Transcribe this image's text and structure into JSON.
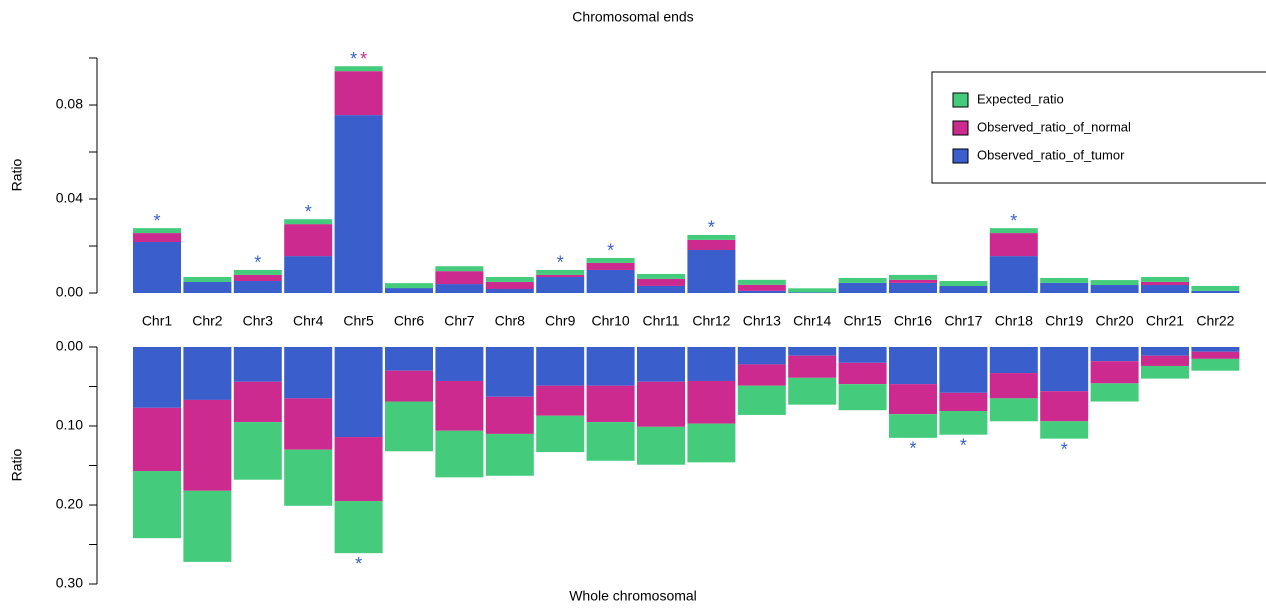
{
  "chart_data": [
    {
      "type": "stacked-bar",
      "title": "Chromosomal ends",
      "ylabel": "Ratio",
      "categories": [
        "Chr1",
        "Chr2",
        "Chr3",
        "Chr4",
        "Chr5",
        "Chr6",
        "Chr7",
        "Chr8",
        "Chr9",
        "Chr10",
        "Chr11",
        "Chr12",
        "Chr13",
        "Chr14",
        "Chr15",
        "Chr16",
        "Chr17",
        "Chr18",
        "Chr19",
        "Chr20",
        "Chr21",
        "Chr22"
      ],
      "series": [
        {
          "name": "Observed_ratio_of_tumor",
          "color": "#3a5fcd",
          "values": [
            0.0217,
            0.0047,
            0.0051,
            0.0157,
            0.0757,
            0.0021,
            0.0038,
            0.0017,
            0.0068,
            0.0098,
            0.003,
            0.0183,
            0.0009,
            0.0003,
            0.0043,
            0.0043,
            0.003,
            0.0157,
            0.0043,
            0.0034,
            0.0034,
            0.0009
          ]
        },
        {
          "name": "Observed_ratio_of_normal",
          "color": "#cc2a8e",
          "values": [
            0.0038,
            0,
            0.0026,
            0.0136,
            0.0187,
            0,
            0.0055,
            0.003,
            0.0009,
            0.003,
            0.003,
            0.0043,
            0.0026,
            0,
            0,
            0.0013,
            0,
            0.0098,
            0,
            0,
            0.0013,
            0
          ]
        },
        {
          "name": "Expected_ratio",
          "color": "#44cc7c",
          "values": [
            0.0021,
            0.0021,
            0.0021,
            0.0021,
            0.0021,
            0.0021,
            0.0021,
            0.0021,
            0.0021,
            0.0021,
            0.0021,
            0.0021,
            0.0021,
            0.0017,
            0.0021,
            0.0021,
            0.0021,
            0.0021,
            0.0021,
            0.0021,
            0.0021,
            0.0021
          ]
        }
      ],
      "ylim": [
        0,
        0.1
      ],
      "yticks": [
        {
          "value": 0,
          "label": "0.00"
        },
        {
          "value": 0.04,
          "label": "0.04"
        },
        {
          "value": 0.08,
          "label": "0.08"
        }
      ],
      "minor_yticks": [
        0.02,
        0.06,
        0.1
      ],
      "legend": "top-right",
      "annotations": [
        {
          "text": "*",
          "category": "Chr1",
          "color": "#3a5fcd"
        },
        {
          "text": "*",
          "category": "Chr3",
          "color": "#3a5fcd"
        },
        {
          "text": "*",
          "category": "Chr4",
          "color": "#3a5fcd"
        },
        {
          "text": "*",
          "category": "Chr5",
          "color": "#3a5fcd"
        },
        {
          "text": "*",
          "category": "Chr5",
          "color": "#cc2a8e"
        },
        {
          "text": "*",
          "category": "Chr9",
          "color": "#3a5fcd"
        },
        {
          "text": "*",
          "category": "Chr10",
          "color": "#3a5fcd"
        },
        {
          "text": "*",
          "category": "Chr12",
          "color": "#3a5fcd"
        },
        {
          "text": "*",
          "category": "Chr18",
          "color": "#3a5fcd"
        }
      ]
    },
    {
      "type": "stacked-bar",
      "title": "Whole chromosomal",
      "ylabel": "Ratio",
      "inverted": true,
      "series": [
        {
          "color": "#3a5fcd",
          "values": [
            0.077,
            0.067,
            0.044,
            0.065,
            0.114,
            0.03,
            0.043,
            0.063,
            0.049,
            0.049,
            0.044,
            0.043,
            0.022,
            0.011,
            0.02,
            0.047,
            0.058,
            0.033,
            0.056,
            0.018,
            0.011,
            0.006
          ]
        },
        {
          "color": "#cc2a8e",
          "values": [
            0.08,
            0.115,
            0.051,
            0.065,
            0.081,
            0.039,
            0.063,
            0.047,
            0.038,
            0.046,
            0.057,
            0.054,
            0.027,
            0.028,
            0.027,
            0.038,
            0.023,
            0.032,
            0.038,
            0.028,
            0.013,
            0.009
          ]
        },
        {
          "color": "#44cc7c",
          "values": [
            0.085,
            0.09,
            0.073,
            0.071,
            0.066,
            0.063,
            0.059,
            0.053,
            0.046,
            0.049,
            0.048,
            0.049,
            0.037,
            0.034,
            0.033,
            0.03,
            0.03,
            0.029,
            0.022,
            0.023,
            0.016,
            0.015
          ]
        }
      ],
      "ylim": [
        0,
        0.3
      ],
      "yticks": [
        {
          "value": 0,
          "label": "0.00"
        },
        {
          "value": 0.1,
          "label": "0.10"
        },
        {
          "value": 0.2,
          "label": "0.20"
        },
        {
          "value": 0.3,
          "label": "0.30"
        }
      ],
      "minor_yticks": [
        0.05,
        0.15,
        0.25
      ],
      "annotations": [
        {
          "text": "*",
          "category": "Chr5",
          "color": "#3a5fcd"
        },
        {
          "text": "*",
          "category": "Chr16",
          "color": "#3a5fcd"
        },
        {
          "text": "*",
          "category": "Chr17",
          "color": "#3a5fcd"
        },
        {
          "text": "*",
          "category": "Chr19",
          "color": "#3a5fcd"
        }
      ]
    }
  ]
}
